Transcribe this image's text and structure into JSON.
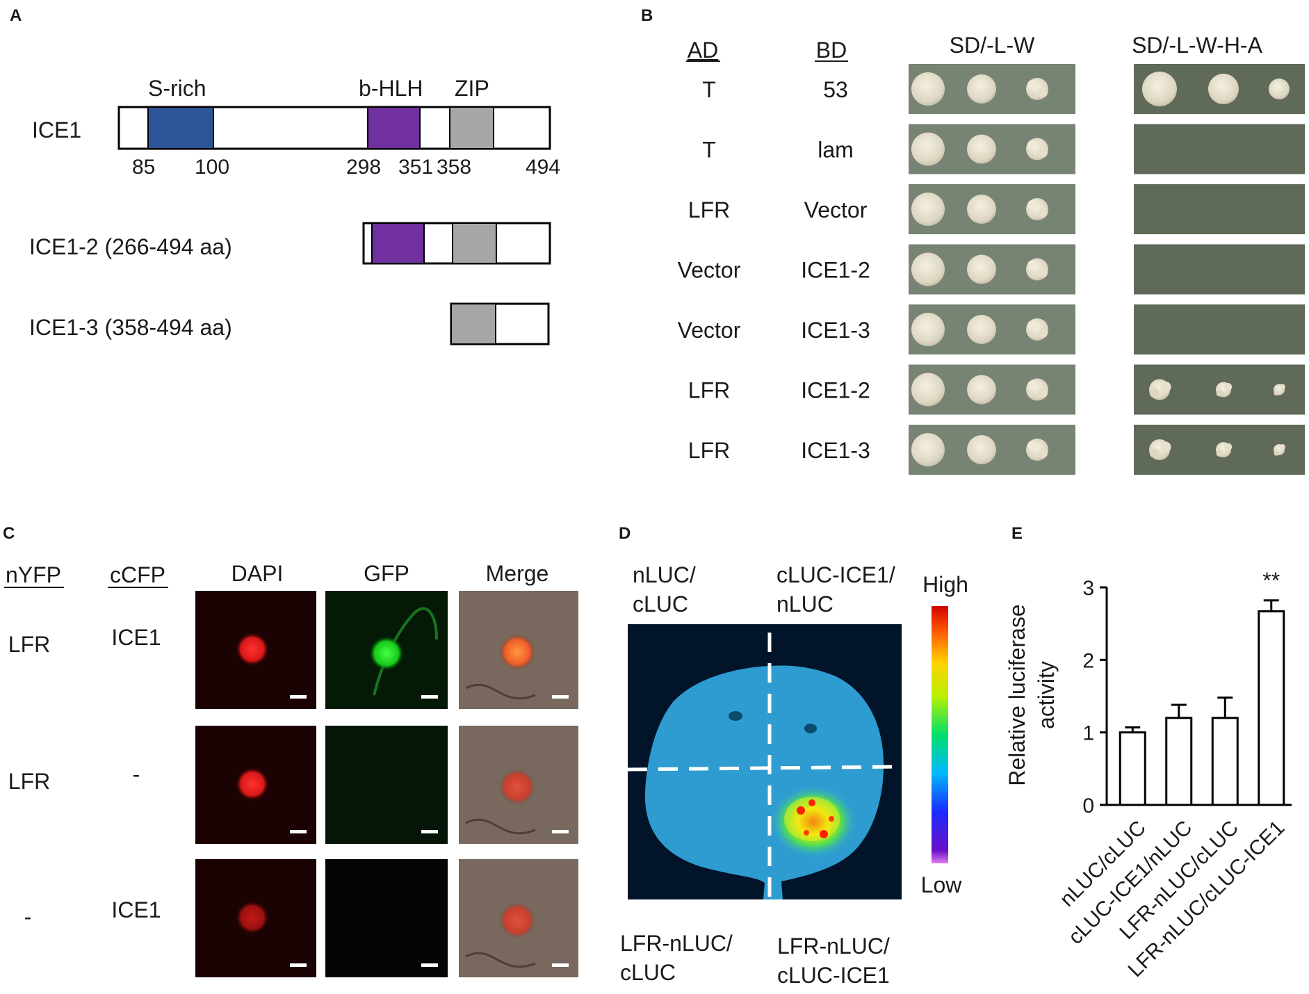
{
  "panel_letters": {
    "a": "A",
    "b": "B",
    "c": "C",
    "d": "D",
    "e": "E"
  },
  "panel_a": {
    "full": {
      "name": "ICE1",
      "domains": {
        "s_rich": "S-rich",
        "bhlh": "b-HLH",
        "zip": "ZIP"
      },
      "positions": {
        "p85": "85",
        "p100": "100",
        "p298": "298",
        "p351": "351",
        "p358": "358",
        "p494": "494"
      }
    },
    "ice1_2": "ICE1-2 (266-494 aa)",
    "ice1_3": "ICE1-3 (358-494 aa)",
    "colors": {
      "s_rich": "#2e5597",
      "bhlh": "#7030a0",
      "zip": "#a6a6a6"
    }
  },
  "panel_b": {
    "headers": {
      "ad": "AD",
      "bd": "BD",
      "plate1": "SD/-L-W",
      "plate2": "SD/-L-W-H-A"
    },
    "rows": [
      {
        "ad": "T",
        "bd": "53",
        "growth_plate2": true
      },
      {
        "ad": "T",
        "bd": "lam",
        "growth_plate2": false
      },
      {
        "ad": "LFR",
        "bd": "Vector",
        "growth_plate2": false
      },
      {
        "ad": "Vector",
        "bd": "ICE1-2",
        "growth_plate2": false
      },
      {
        "ad": "Vector",
        "bd": "ICE1-3",
        "growth_plate2": false
      },
      {
        "ad": "LFR",
        "bd": "ICE1-2",
        "growth_plate2": true
      },
      {
        "ad": "LFR",
        "bd": "ICE1-3",
        "growth_plate2": true
      }
    ]
  },
  "panel_c": {
    "headers": {
      "nyfp": "nYFP",
      "ccfp": "cCFP",
      "dapi": "DAPI",
      "gfp": "GFP",
      "merge": "Merge"
    },
    "rows": [
      {
        "nyfp": "LFR",
        "ccfp": "ICE1",
        "gfp_signal": true
      },
      {
        "nyfp": "LFR",
        "ccfp": "-",
        "gfp_signal": false
      },
      {
        "nyfp": "-",
        "ccfp": "ICE1",
        "gfp_signal": false
      }
    ]
  },
  "panel_d": {
    "top_left": [
      "nLUC/",
      "cLUC"
    ],
    "top_right": [
      "cLUC-ICE1/",
      "nLUC"
    ],
    "bottom_left": [
      "LFR-nLUC/",
      "cLUC"
    ],
    "bottom_right": [
      "LFR-nLUC/",
      "cLUC-ICE1"
    ],
    "scale_high": "High",
    "scale_low": "Low"
  },
  "chart_data": {
    "type": "bar",
    "categories": [
      "nLUC/cLUC",
      "cLUC-ICE1/nLUC",
      "LFR-nLUC/cLUC",
      "LFR-nLUC/cLUC-ICE1"
    ],
    "values": [
      1.0,
      1.2,
      1.2,
      2.67
    ],
    "errors": [
      0.07,
      0.18,
      0.28,
      0.15
    ],
    "annotations": [
      "",
      "",
      "",
      "**"
    ],
    "ylabel_line1": "Relative luciferase",
    "ylabel_line2": "activity",
    "ylim": [
      0,
      3
    ],
    "yticks": [
      "0",
      "1",
      "2",
      "3"
    ]
  }
}
